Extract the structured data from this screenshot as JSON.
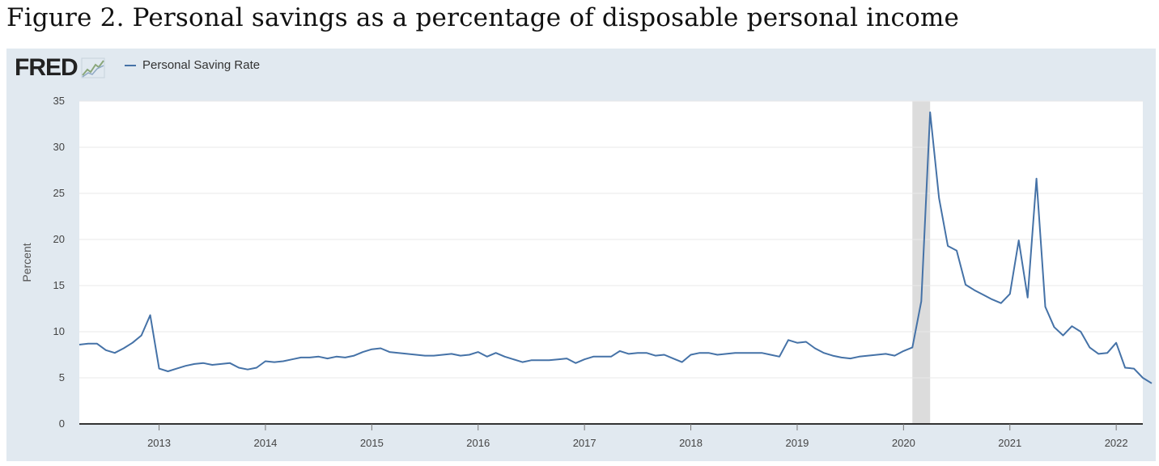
{
  "figure_title": "Figure 2. Personal savings as a percentage of disposable personal income",
  "logo": {
    "text": "FRED",
    "icon": "chart-line-icon"
  },
  "colors": {
    "line": "#4572a7",
    "recession": "#dcdcdc",
    "frame": "#e1e9f0",
    "grid": "#e8e8e8",
    "axis": "#333333"
  },
  "chart_data": {
    "type": "line",
    "legend": [
      "Personal Saving Rate"
    ],
    "legend_position": "top-left",
    "ylabel": "Percent",
    "ylim": [
      0,
      35
    ],
    "yticks": [
      0,
      5,
      10,
      15,
      20,
      25,
      30,
      35
    ],
    "grid": true,
    "xlim": [
      "2012-04",
      "2022-04"
    ],
    "xticks": [
      "2013",
      "2014",
      "2015",
      "2016",
      "2017",
      "2018",
      "2019",
      "2020",
      "2021",
      "2022"
    ],
    "recession_shading": [
      [
        "2020-02",
        "2020-04"
      ]
    ],
    "series": [
      {
        "name": "Personal Saving Rate",
        "start": "2012-04",
        "frequency": "monthly",
        "values": [
          8.6,
          8.7,
          8.7,
          8.0,
          7.7,
          8.2,
          8.8,
          9.6,
          11.8,
          6.0,
          5.7,
          6.0,
          6.3,
          6.5,
          6.6,
          6.4,
          6.5,
          6.6,
          6.1,
          5.9,
          6.1,
          6.8,
          6.7,
          6.8,
          7.0,
          7.2,
          7.2,
          7.3,
          7.1,
          7.3,
          7.2,
          7.4,
          7.8,
          8.1,
          8.2,
          7.8,
          7.7,
          7.6,
          7.5,
          7.4,
          7.4,
          7.5,
          7.6,
          7.4,
          7.5,
          7.8,
          7.3,
          7.7,
          7.3,
          7.0,
          6.7,
          6.9,
          6.9,
          6.9,
          7.0,
          7.1,
          6.6,
          7.0,
          7.3,
          7.3,
          7.3,
          7.9,
          7.6,
          7.7,
          7.7,
          7.4,
          7.5,
          7.1,
          6.7,
          7.5,
          7.7,
          7.7,
          7.5,
          7.6,
          7.7,
          7.7,
          7.7,
          7.7,
          7.5,
          7.3,
          9.1,
          8.8,
          8.9,
          8.2,
          7.7,
          7.4,
          7.2,
          7.1,
          7.3,
          7.4,
          7.5,
          7.6,
          7.4,
          7.9,
          8.3,
          13.3,
          33.8,
          24.5,
          19.3,
          18.8,
          15.1,
          14.5,
          14.0,
          13.5,
          13.1,
          14.1,
          19.9,
          13.7,
          26.6,
          12.7,
          10.5,
          9.6,
          10.6,
          10.0,
          8.3,
          7.6,
          7.7,
          8.8,
          6.1,
          6.0,
          5.0,
          4.4
        ]
      }
    ]
  }
}
